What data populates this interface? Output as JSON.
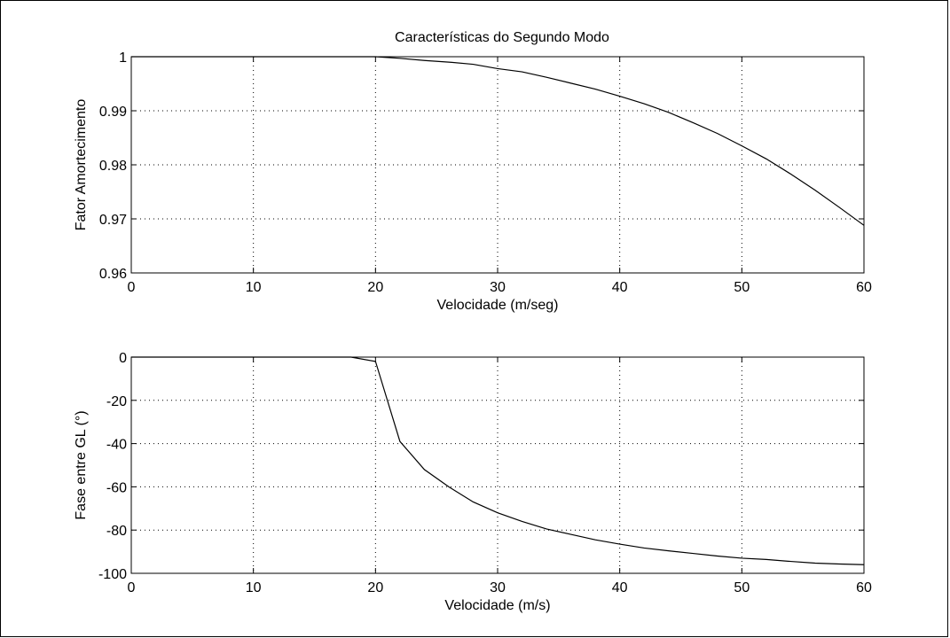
{
  "figure": {
    "title": "Características do Segundo Modo"
  },
  "chart_data": [
    {
      "type": "line",
      "title": "Características do Segundo Modo",
      "xlabel": "Velocidade (m/seg)",
      "ylabel": "Fator Amortecimento",
      "xlim": [
        0,
        60
      ],
      "ylim": [
        0.96,
        1.0
      ],
      "xticks": [
        0,
        10,
        20,
        30,
        40,
        50,
        60
      ],
      "yticks": [
        0.96,
        0.97,
        0.98,
        0.99,
        1.0
      ],
      "xtick_labels": [
        "0",
        "10",
        "20",
        "30",
        "40",
        "50",
        "60"
      ],
      "ytick_labels": [
        "0.96",
        "0.97",
        "0.98",
        "0.99",
        "1"
      ],
      "grid": "dotted",
      "series": [
        {
          "color": "#000000",
          "x": [
            0,
            2,
            4,
            6,
            8,
            10,
            12,
            14,
            16,
            18,
            20,
            22,
            24,
            26,
            28,
            30,
            32,
            34,
            36,
            38,
            40,
            42,
            44,
            46,
            48,
            50,
            52,
            54,
            56,
            58,
            60
          ],
          "y": [
            1.0,
            1.0,
            1.0,
            1.0,
            1.0,
            1.0,
            1.0,
            1.0,
            1.0,
            1.0,
            1.0,
            0.9997,
            0.9993,
            0.999,
            0.9986,
            0.9978,
            0.9972,
            0.9962,
            0.9951,
            0.994,
            0.9927,
            0.9913,
            0.9897,
            0.9878,
            0.9858,
            0.9835,
            0.9811,
            0.9783,
            0.9753,
            0.9721,
            0.9688
          ]
        }
      ]
    },
    {
      "type": "line",
      "title": "",
      "xlabel": "Velocidade (m/s)",
      "ylabel": "Fase entre GL (°)",
      "xlim": [
        0,
        60
      ],
      "ylim": [
        -100,
        0
      ],
      "xticks": [
        0,
        10,
        20,
        30,
        40,
        50,
        60
      ],
      "yticks": [
        -100,
        -80,
        -60,
        -40,
        -20,
        0
      ],
      "xtick_labels": [
        "0",
        "10",
        "20",
        "30",
        "40",
        "50",
        "60"
      ],
      "ytick_labels": [
        "-100",
        "-80",
        "-60",
        "-40",
        "-20",
        "0"
      ],
      "grid": "dotted",
      "series": [
        {
          "color": "#000000",
          "x": [
            0,
            2,
            4,
            6,
            8,
            10,
            12,
            14,
            16,
            18,
            20,
            22,
            24,
            26,
            28,
            30,
            32,
            34,
            36,
            38,
            40,
            42,
            44,
            46,
            48,
            50,
            52,
            54,
            56,
            58,
            60
          ],
          "y": [
            0,
            0,
            0,
            0,
            0,
            0,
            0,
            0,
            0,
            0,
            -2,
            -39,
            -52,
            -60,
            -67,
            -72,
            -76,
            -79.5,
            -82,
            -84.5,
            -86.5,
            -88.3,
            -89.6,
            -90.8,
            -92,
            -93,
            -93.6,
            -94.5,
            -95.3,
            -95.7,
            -96
          ]
        }
      ]
    }
  ]
}
